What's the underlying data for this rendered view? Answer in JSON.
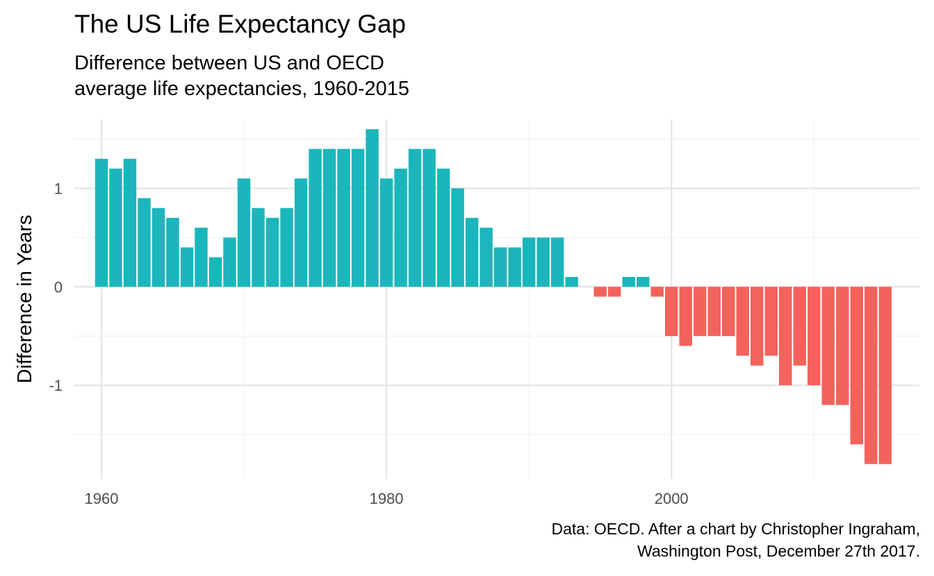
{
  "chart_data": {
    "type": "bar",
    "title": "The US Life Expectancy Gap",
    "subtitle": [
      "Difference between US and OECD",
      "average life expectancies, 1960-2015"
    ],
    "caption": [
      "Data: OECD. After a chart by Christopher Ingraham,",
      "Washington Post, December 27th 2017."
    ],
    "xlabel": "",
    "ylabel": "Difference in Years",
    "x_ticks": [
      {
        "value": 1960,
        "label": "1960"
      },
      {
        "value": 1980,
        "label": "1980"
      },
      {
        "value": 2000,
        "label": "2000"
      }
    ],
    "y_ticks": [
      {
        "value": 1,
        "label": "1"
      },
      {
        "value": 0,
        "label": "0"
      },
      {
        "value": -1,
        "label": "-1"
      }
    ],
    "xlim": [
      1958.1,
      2017.4
    ],
    "ylim": [
      -1.95,
      1.7
    ],
    "grid": true,
    "legend": "none",
    "colors": {
      "positive": "#1bb6bb",
      "negative": "#f4625c",
      "grid_major": "#e5e5e5",
      "grid_minor": "#f0f0f0"
    },
    "x": [
      1960,
      1961,
      1962,
      1963,
      1964,
      1965,
      1966,
      1967,
      1968,
      1969,
      1970,
      1971,
      1972,
      1973,
      1974,
      1975,
      1976,
      1977,
      1978,
      1979,
      1980,
      1981,
      1982,
      1983,
      1984,
      1985,
      1986,
      1987,
      1988,
      1989,
      1990,
      1991,
      1992,
      1993,
      1994,
      1995,
      1996,
      1997,
      1998,
      1999,
      2000,
      2001,
      2002,
      2003,
      2004,
      2005,
      2006,
      2007,
      2008,
      2009,
      2010,
      2011,
      2012,
      2013,
      2014,
      2015
    ],
    "values": [
      1.3,
      1.2,
      1.3,
      0.9,
      0.8,
      0.7,
      0.4,
      0.6,
      0.3,
      0.5,
      1.1,
      0.8,
      0.7,
      0.8,
      1.1,
      1.4,
      1.4,
      1.4,
      1.4,
      1.6,
      1.1,
      1.2,
      1.4,
      1.4,
      1.2,
      1.0,
      0.7,
      0.6,
      0.4,
      0.4,
      0.5,
      0.5,
      0.5,
      0.1,
      0.0,
      -0.1,
      -0.1,
      0.1,
      0.1,
      -0.1,
      -0.5,
      -0.6,
      -0.5,
      -0.5,
      -0.5,
      -0.7,
      -0.8,
      -0.7,
      -1.0,
      -0.8,
      -1.0,
      -1.2,
      -1.2,
      -1.6,
      -1.8,
      -1.8
    ]
  }
}
